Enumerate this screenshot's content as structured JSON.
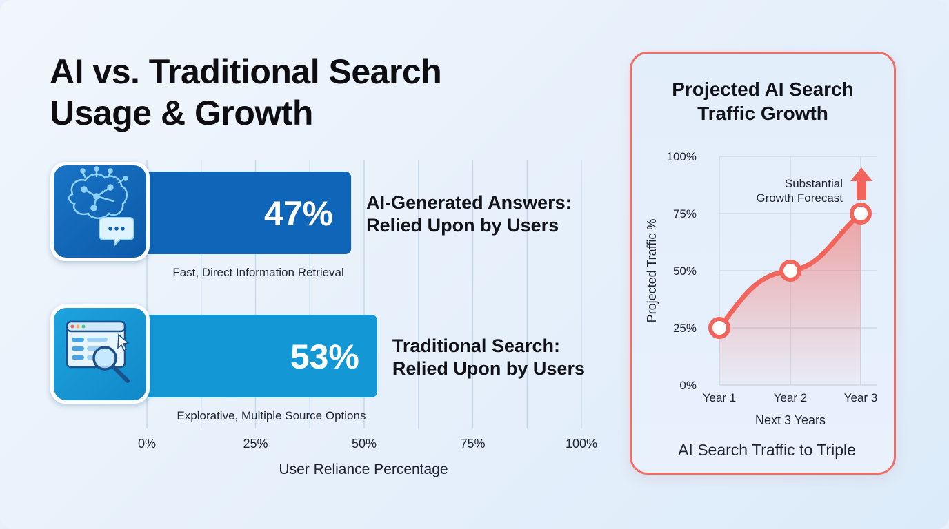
{
  "title": {
    "line1": "AI vs. Traditional Search",
    "line2": "Usage & Growth"
  },
  "colors": {
    "ai_bar": "#0f66b8",
    "traditional_bar": "#1498d5",
    "accent_red": "#f2655d",
    "grid": "#c8d9ea"
  },
  "icons": {
    "ai": "brain-chat-icon",
    "traditional": "browser-search-icon",
    "growth": "arrow-up-icon"
  },
  "chart_data": [
    {
      "type": "bar",
      "orientation": "horizontal",
      "categories": [
        "AI-Generated Answers: Relied Upon by Users",
        "Traditional Search: Relied Upon by Users"
      ],
      "category_lines": [
        [
          "AI-Generated Answers:",
          "Relied Upon by Users"
        ],
        [
          "Traditional Search:",
          "Relied Upon by Users"
        ]
      ],
      "values": [
        47,
        53
      ],
      "value_labels": [
        "47%",
        "53%"
      ],
      "sublabels": [
        "Fast, Direct Information Retrieval",
        "Explorative, Multiple Source Options"
      ],
      "xlabel": "User Reliance Percentage",
      "xlim": [
        0,
        100
      ],
      "xticks": [
        "0%",
        "25%",
        "50%",
        "75%",
        "100%"
      ],
      "grid": true
    },
    {
      "type": "line",
      "title": "Projected AI Search Traffic Growth",
      "title_lines": [
        "Projected AI Search",
        "Traffic Growth"
      ],
      "x": [
        "Year 1",
        "Year 2",
        "Year 3"
      ],
      "series": [
        {
          "values": [
            25,
            50,
            75
          ]
        }
      ],
      "ylabel": "Projected Traffic %",
      "xlabel": "Next 3 Years",
      "ylim": [
        0,
        100
      ],
      "yticks": [
        "0%",
        "25%",
        "50%",
        "75%",
        "100%"
      ],
      "annotation_lines": [
        "Substantial",
        "Growth Forecast"
      ],
      "caption": "AI Search Traffic to Triple",
      "grid": true
    }
  ]
}
